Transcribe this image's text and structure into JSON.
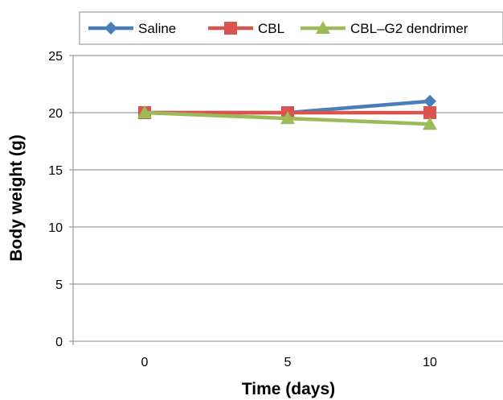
{
  "chart_data": {
    "type": "line",
    "xlabel": "Time (days)",
    "ylabel": "Body weight (g)",
    "x": [
      0,
      5,
      10
    ],
    "x_tick_labels": [
      "0",
      "5",
      "10"
    ],
    "ylim": [
      0,
      25
    ],
    "y_ticks": [
      0,
      5,
      10,
      15,
      20,
      25
    ],
    "y_tick_labels": [
      "0",
      "5",
      "10",
      "15",
      "20",
      "25"
    ],
    "grid": true,
    "legend_position": "top",
    "series": [
      {
        "name": "Saline",
        "values": [
          20,
          20,
          21
        ],
        "color": "#4a7ebb",
        "marker": "diamond"
      },
      {
        "name": "CBL",
        "values": [
          20,
          20,
          20
        ],
        "color": "#d9534f",
        "marker": "square"
      },
      {
        "name": "CBL–G2 dendrimer",
        "values": [
          20,
          19.5,
          19
        ],
        "color": "#9bbb59",
        "marker": "triangle"
      }
    ]
  }
}
